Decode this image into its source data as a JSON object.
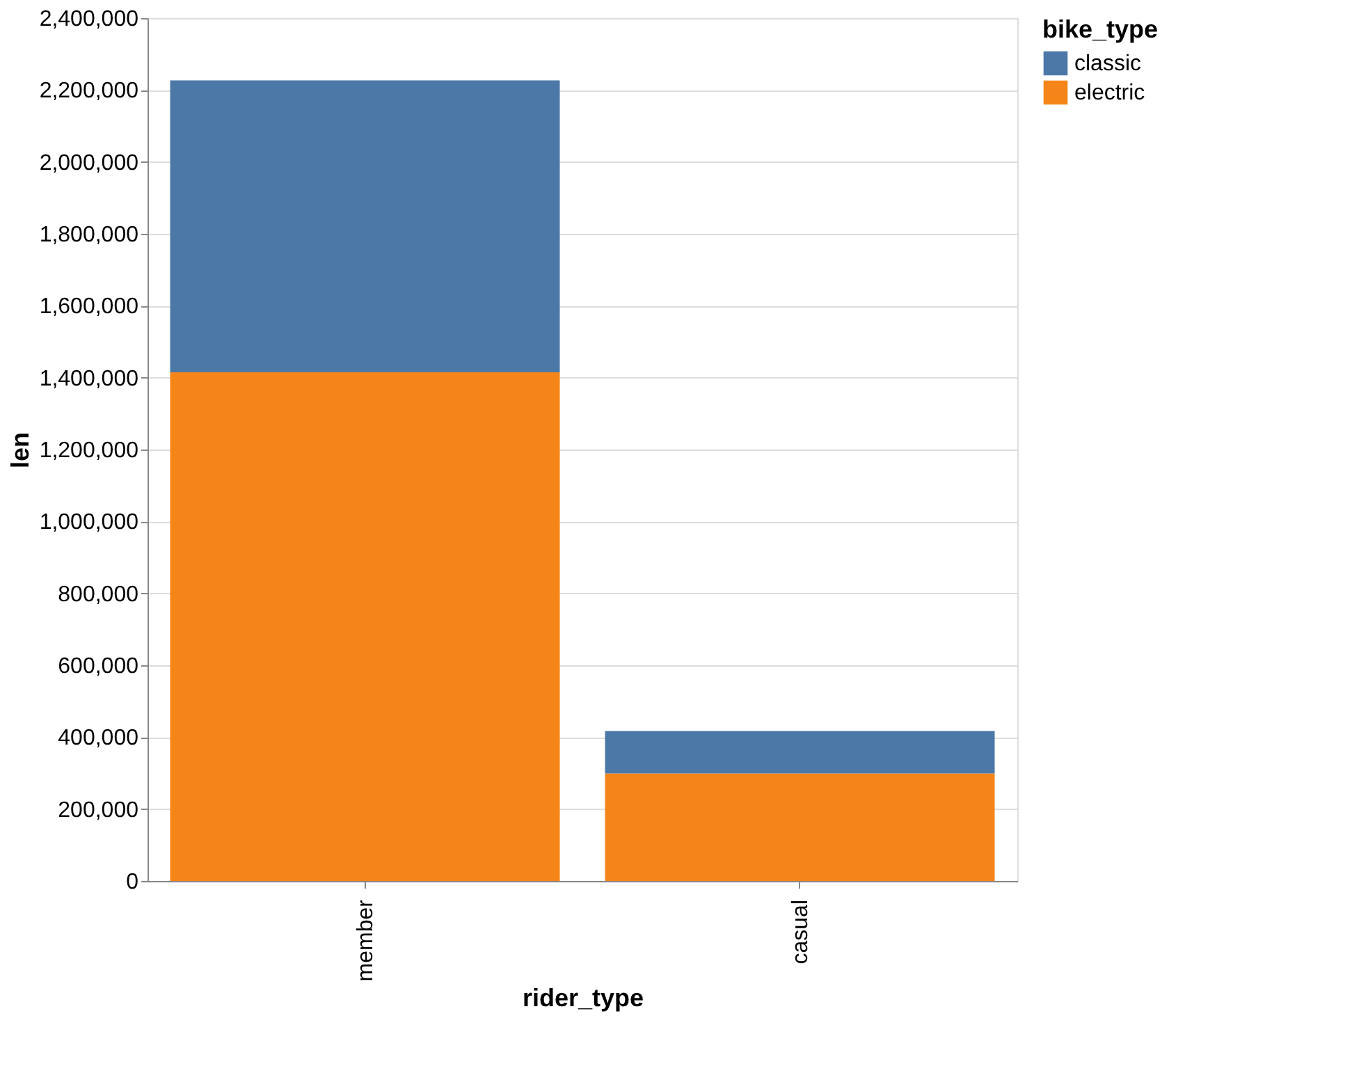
{
  "chart_data": {
    "type": "bar",
    "stacked": true,
    "xlabel": "rider_type",
    "ylabel": "len",
    "legend_title": "bike_type",
    "legend": "top right",
    "categories": [
      "member",
      "casual"
    ],
    "series": [
      {
        "name": "electric",
        "color": "#f58518",
        "values": [
          1415000,
          299000
        ]
      },
      {
        "name": "classic",
        "color": "#4c78a8",
        "values": [
          812000,
          118000
        ]
      }
    ],
    "ylim": [
      0,
      2400000
    ],
    "yticks": [
      0,
      {
        "value": 200000,
        "label": "200,000"
      },
      {
        "value": 400000,
        "label": "400,000"
      },
      {
        "value": 600000,
        "label": "600,000"
      },
      {
        "value": 800000,
        "label": "800,000"
      },
      {
        "value": 1000000,
        "label": "1,000,000"
      },
      {
        "value": 1200000,
        "label": "1,200,000"
      },
      {
        "value": 1400000,
        "label": "1,400,000"
      },
      {
        "value": 1600000,
        "label": "1,600,000"
      },
      {
        "value": 1800000,
        "label": "1,800,000"
      },
      {
        "value": 2000000,
        "label": "2,000,000"
      },
      {
        "value": 2200000,
        "label": "2,200,000"
      },
      {
        "value": 2400000,
        "label": "2,400,000"
      }
    ],
    "grid": "y"
  }
}
